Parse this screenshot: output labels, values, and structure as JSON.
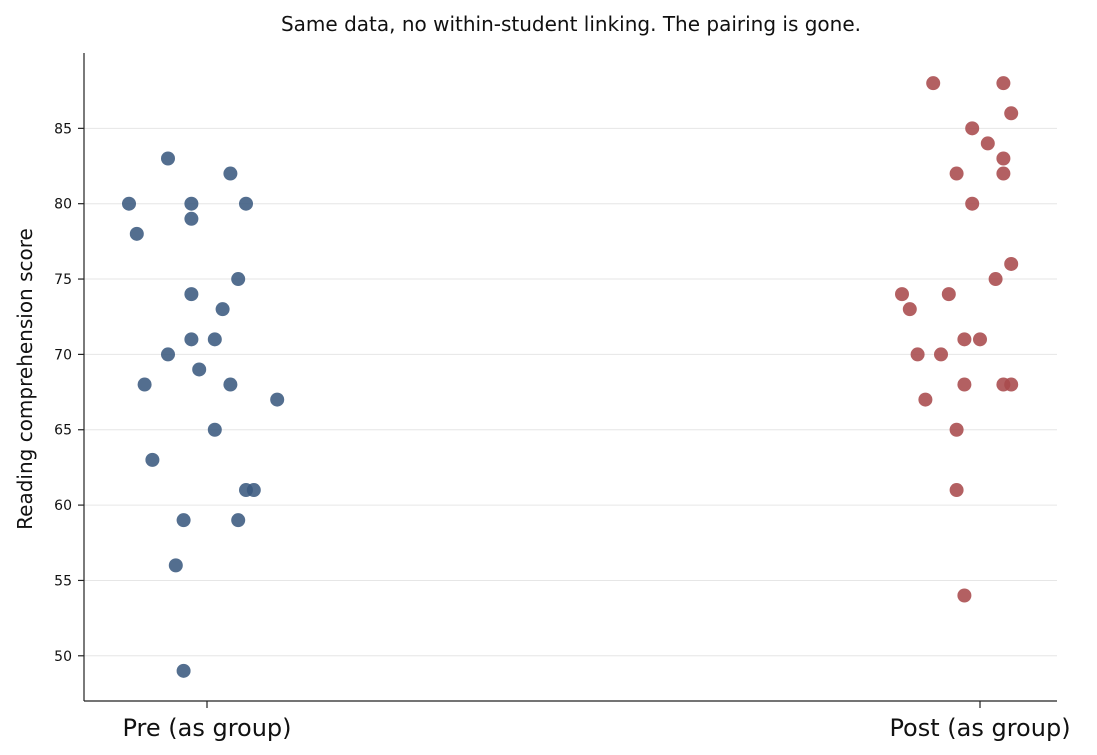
{
  "chart_data": {
    "type": "scatter",
    "title": "Same data, no within-student linking. The pairing is gone.",
    "xlabel": "",
    "ylabel": "Reading comprehension score",
    "ylim": [
      47,
      90
    ],
    "yticks": [
      50,
      55,
      60,
      65,
      70,
      75,
      80,
      85
    ],
    "categories": [
      "Pre (as group)",
      "Post (as group)"
    ],
    "grid": "y",
    "series": [
      {
        "category": "Pre (as group)",
        "color": "#3b5a80",
        "points": [
          {
            "x": -0.1,
            "y": 80
          },
          {
            "x": -0.09,
            "y": 78
          },
          {
            "x": -0.05,
            "y": 83
          },
          {
            "x": -0.08,
            "y": 68
          },
          {
            "x": -0.07,
            "y": 63
          },
          {
            "x": -0.05,
            "y": 70
          },
          {
            "x": -0.04,
            "y": 56
          },
          {
            "x": -0.03,
            "y": 59
          },
          {
            "x": -0.03,
            "y": 49
          },
          {
            "x": -0.02,
            "y": 80
          },
          {
            "x": -0.02,
            "y": 79
          },
          {
            "x": -0.02,
            "y": 74
          },
          {
            "x": -0.02,
            "y": 71
          },
          {
            "x": -0.01,
            "y": 69
          },
          {
            "x": 0.01,
            "y": 71
          },
          {
            "x": 0.01,
            "y": 65
          },
          {
            "x": 0.02,
            "y": 73
          },
          {
            "x": 0.03,
            "y": 68
          },
          {
            "x": 0.03,
            "y": 82
          },
          {
            "x": 0.04,
            "y": 59
          },
          {
            "x": 0.04,
            "y": 75
          },
          {
            "x": 0.05,
            "y": 80
          },
          {
            "x": 0.05,
            "y": 61
          },
          {
            "x": 0.06,
            "y": 61
          },
          {
            "x": 0.09,
            "y": 67
          }
        ]
      },
      {
        "category": "Post (as group)",
        "color": "#a94a4c",
        "points": [
          {
            "x": -0.1,
            "y": 74
          },
          {
            "x": -0.09,
            "y": 73
          },
          {
            "x": -0.08,
            "y": 70
          },
          {
            "x": -0.07,
            "y": 67
          },
          {
            "x": -0.06,
            "y": 88
          },
          {
            "x": -0.05,
            "y": 70
          },
          {
            "x": -0.04,
            "y": 74
          },
          {
            "x": -0.03,
            "y": 82
          },
          {
            "x": -0.03,
            "y": 65
          },
          {
            "x": -0.03,
            "y": 61
          },
          {
            "x": -0.02,
            "y": 71
          },
          {
            "x": -0.02,
            "y": 68
          },
          {
            "x": -0.02,
            "y": 54
          },
          {
            "x": -0.01,
            "y": 80
          },
          {
            "x": -0.01,
            "y": 85
          },
          {
            "x": 0.0,
            "y": 71
          },
          {
            "x": 0.01,
            "y": 84
          },
          {
            "x": 0.02,
            "y": 75
          },
          {
            "x": 0.03,
            "y": 68
          },
          {
            "x": 0.03,
            "y": 82
          },
          {
            "x": 0.03,
            "y": 83
          },
          {
            "x": 0.03,
            "y": 88
          },
          {
            "x": 0.04,
            "y": 86
          },
          {
            "x": 0.04,
            "y": 68
          },
          {
            "x": 0.04,
            "y": 76
          }
        ]
      }
    ]
  }
}
